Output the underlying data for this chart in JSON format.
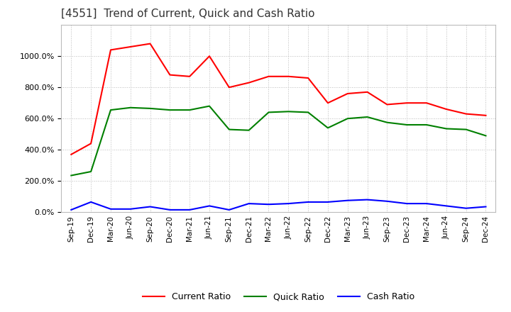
{
  "title": "[4551]  Trend of Current, Quick and Cash Ratio",
  "background_color": "#ffffff",
  "plot_background_color": "#ffffff",
  "grid_color": "#bbbbbb",
  "title_fontsize": 11,
  "tick_labels": [
    "Sep-19",
    "Dec-19",
    "Mar-20",
    "Jun-20",
    "Sep-20",
    "Dec-20",
    "Mar-21",
    "Jun-21",
    "Sep-21",
    "Dec-21",
    "Mar-22",
    "Jun-22",
    "Sep-22",
    "Dec-22",
    "Mar-23",
    "Jun-23",
    "Sep-23",
    "Dec-23",
    "Mar-24",
    "Jun-24",
    "Sep-24",
    "Dec-24"
  ],
  "current_ratio": [
    370,
    440,
    1040,
    1060,
    1080,
    880,
    870,
    1000,
    800,
    830,
    870,
    870,
    860,
    700,
    760,
    770,
    690,
    700,
    700,
    660,
    630,
    620
  ],
  "quick_ratio": [
    235,
    260,
    655,
    670,
    665,
    655,
    655,
    680,
    530,
    525,
    640,
    645,
    640,
    540,
    600,
    610,
    575,
    560,
    560,
    535,
    530,
    490
  ],
  "cash_ratio": [
    15,
    65,
    20,
    20,
    35,
    15,
    15,
    40,
    15,
    55,
    50,
    55,
    65,
    65,
    75,
    80,
    70,
    55,
    55,
    40,
    25,
    35
  ],
  "current_color": "#ff0000",
  "quick_color": "#008000",
  "cash_color": "#0000ff",
  "line_width": 1.5,
  "ylim": [
    0,
    1200
  ],
  "yticks": [
    0,
    200,
    400,
    600,
    800,
    1000
  ],
  "legend_labels": [
    "Current Ratio",
    "Quick Ratio",
    "Cash Ratio"
  ]
}
